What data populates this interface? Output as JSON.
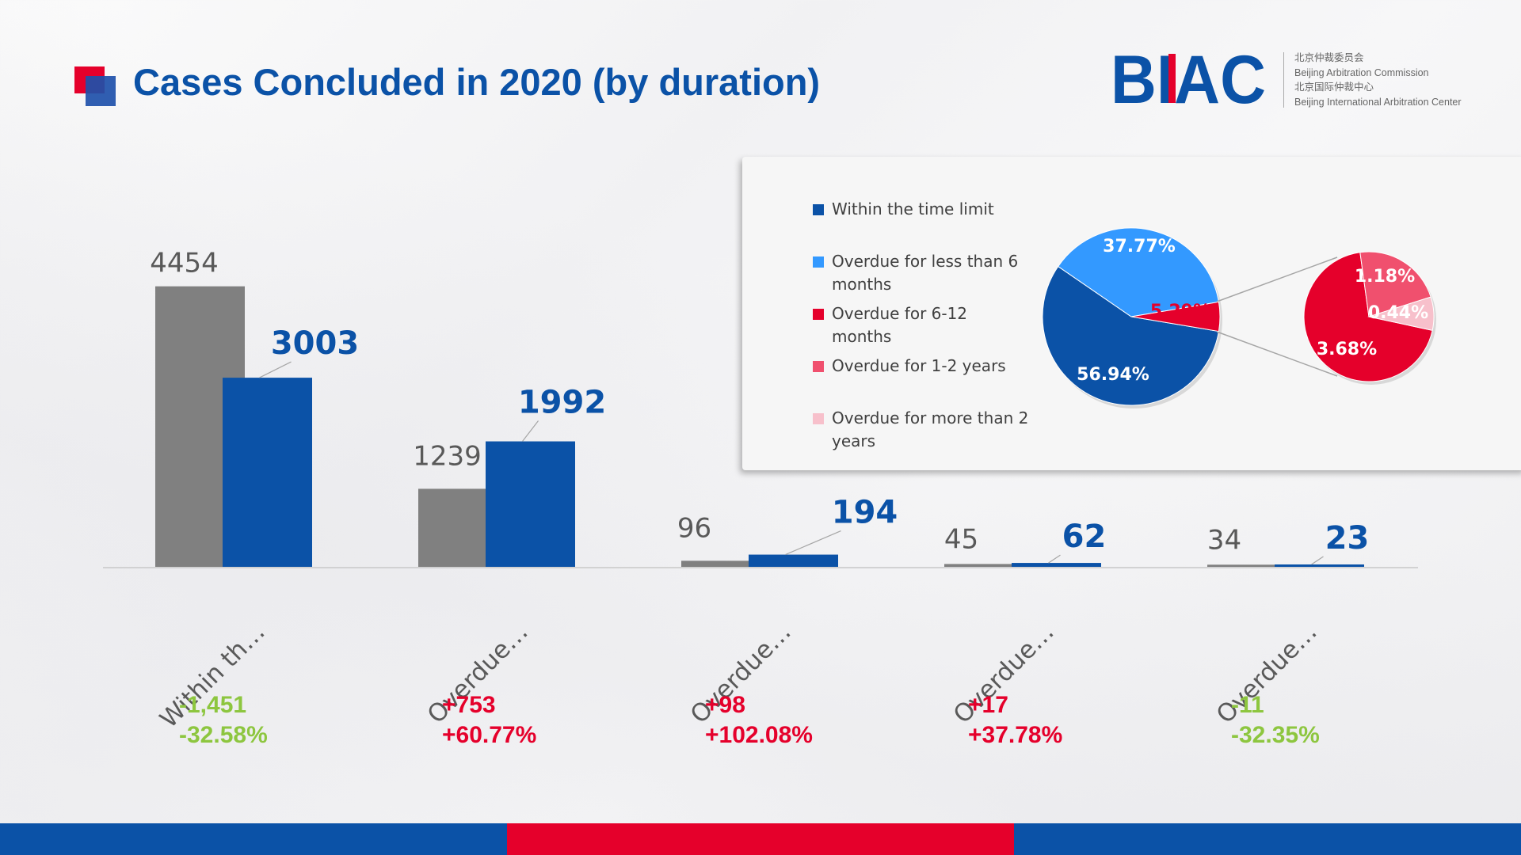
{
  "title": "Cases Concluded in 2020 (by duration)",
  "brand": {
    "logo_text": "BIAC",
    "lines": [
      "北京仲裁委员会",
      "Beijing Arbitration Commission",
      "北京国际仲裁中心",
      "Beijing International Arbitration Center"
    ]
  },
  "colors": {
    "accent_blue": "#0b52a7",
    "accent_red": "#e5002b",
    "gray": "#808080",
    "positive_change": "#e5002b",
    "negative_change": "#8dc63f"
  },
  "chart_data": [
    {
      "type": "bar",
      "categories": [
        "Within th…",
        "Overdue…",
        "Overdue…",
        "Overdue…",
        "Overdue…"
      ],
      "series": [
        {
          "values": [
            4454,
            1239,
            96,
            45,
            34
          ],
          "color": "#808080"
        },
        {
          "values": [
            3003,
            1992,
            194,
            62,
            23
          ],
          "color": "#0b52a7"
        }
      ],
      "changes": [
        "-1,451",
        "+753",
        "+98",
        "+17",
        "-11"
      ],
      "change_percents": [
        "-32.58%",
        "+60.77%",
        "+102.08%",
        "+37.78%",
        "-32.35%"
      ],
      "ylim": [
        0,
        4500
      ],
      "grid": false,
      "legend": "none"
    },
    {
      "type": "pie",
      "labels": [
        "Within the time limit",
        "Overdue for less than 6 months",
        "Overdue for 6-12 months",
        "Overdue for 1-2 years",
        "Overdue for more than 2 years"
      ],
      "values": [
        56.94,
        37.77,
        3.68,
        1.18,
        0.44
      ],
      "value_labels": [
        "56.94%",
        "37.77%",
        "3.68%",
        "1.18%",
        "0.44%"
      ],
      "colors": [
        "#0b52a7",
        "#3399ff",
        "#e5002b",
        "#f0506e",
        "#f7c0cb"
      ],
      "grouped_slice_label": "5.29%",
      "subtype": "pie-of-pie",
      "legend": "left"
    }
  ]
}
